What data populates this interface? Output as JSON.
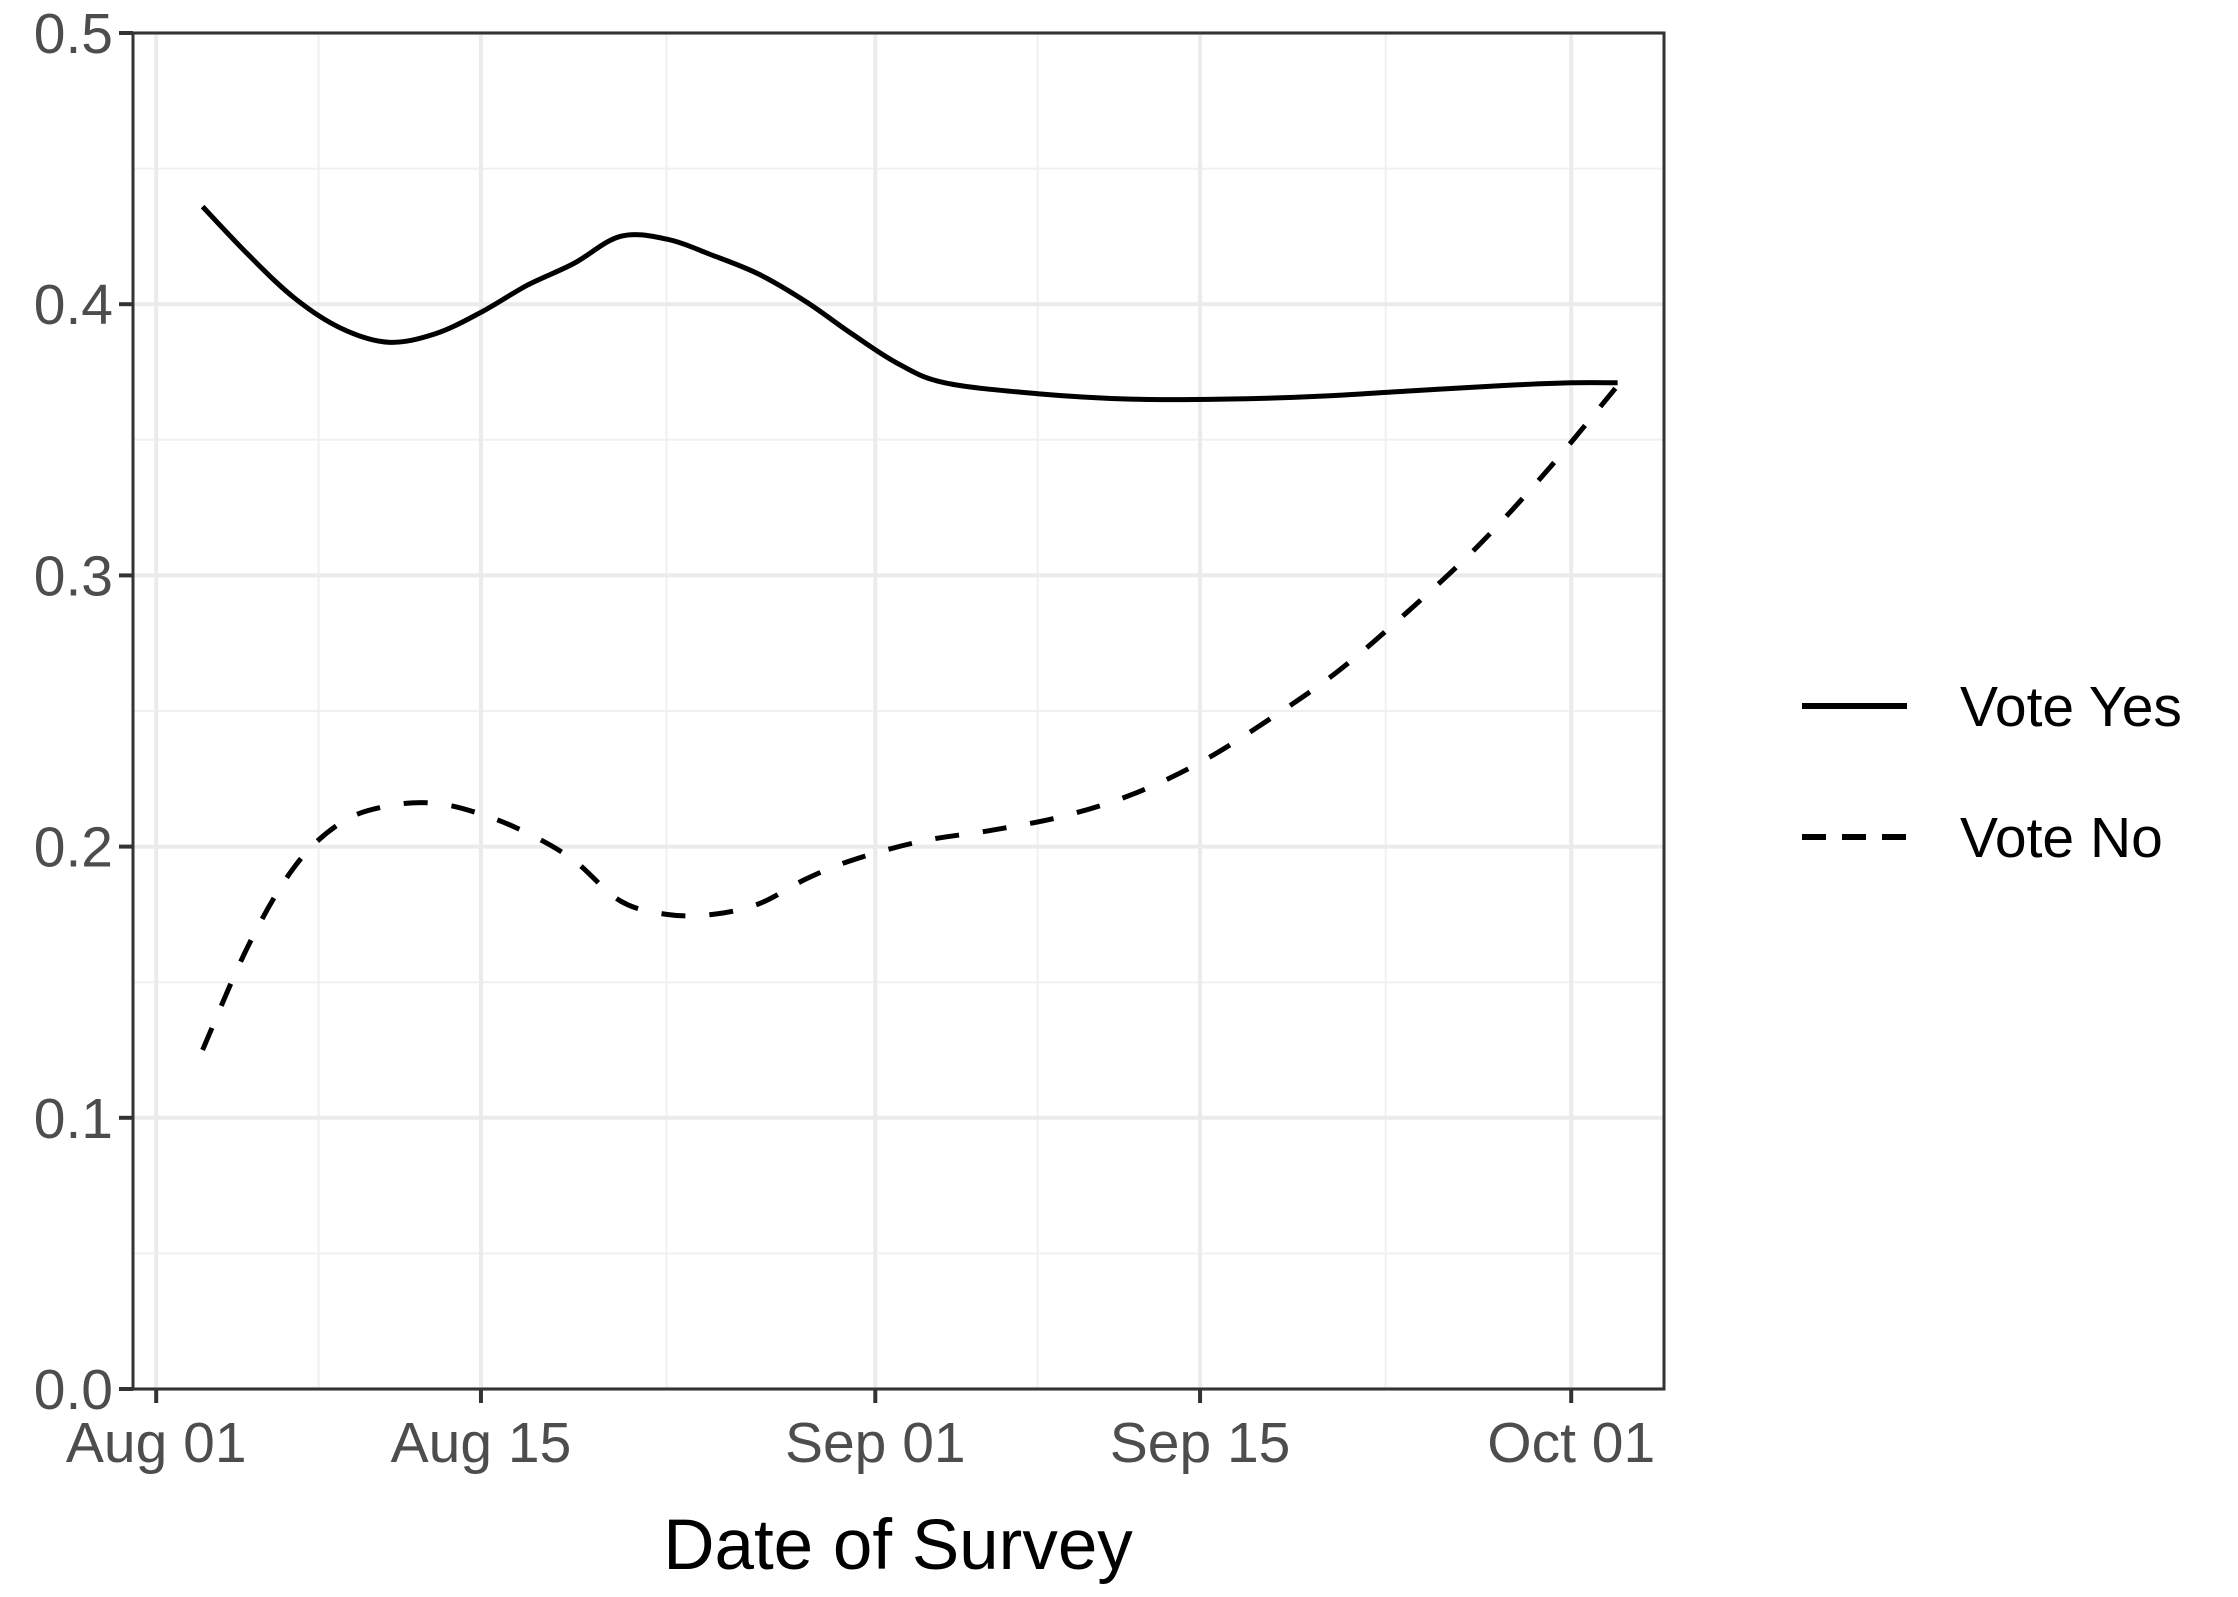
{
  "chart_data": {
    "type": "line",
    "title": "",
    "xlabel": "Date of Survey",
    "ylabel": "",
    "x_major_ticks": [
      "2020-08-01",
      "2020-08-15",
      "2020-09-01",
      "2020-09-15",
      "2020-10-01"
    ],
    "x_tick_labels": [
      "Aug 01",
      "Aug 15",
      "Sep 01",
      "Sep 15",
      "Oct 01"
    ],
    "x_minor_ticks": [
      "2020-08-08",
      "2020-08-23",
      "2020-09-08",
      "2020-09-23"
    ],
    "y_major_ticks": [
      0.0,
      0.1,
      0.2,
      0.3,
      0.4,
      0.5
    ],
    "y_tick_labels": [
      "0.0",
      "0.1",
      "0.2",
      "0.3",
      "0.4",
      "0.5"
    ],
    "y_minor_ticks": [
      0.05,
      0.15,
      0.25,
      0.35,
      0.45
    ],
    "xlim": [
      "2020-07-31",
      "2020-10-05"
    ],
    "ylim": [
      0.0,
      0.5
    ],
    "grid": true,
    "legend_position": "right",
    "series": [
      {
        "name": "Vote Yes",
        "line_style": "solid",
        "color": "#000000",
        "points": [
          [
            "2020-08-03",
            0.436
          ],
          [
            "2020-08-05",
            0.418
          ],
          [
            "2020-08-07",
            0.402
          ],
          [
            "2020-08-09",
            0.391
          ],
          [
            "2020-08-11",
            0.386
          ],
          [
            "2020-08-13",
            0.389
          ],
          [
            "2020-08-15",
            0.397
          ],
          [
            "2020-08-17",
            0.407
          ],
          [
            "2020-08-19",
            0.415
          ],
          [
            "2020-08-21",
            0.425
          ],
          [
            "2020-08-23",
            0.424
          ],
          [
            "2020-08-25",
            0.418
          ],
          [
            "2020-08-27",
            0.411
          ],
          [
            "2020-08-29",
            0.401
          ],
          [
            "2020-08-31",
            0.389
          ],
          [
            "2020-09-02",
            0.378
          ],
          [
            "2020-09-04",
            0.371
          ],
          [
            "2020-09-08",
            0.367
          ],
          [
            "2020-09-12",
            0.365
          ],
          [
            "2020-09-16",
            0.365
          ],
          [
            "2020-09-20",
            0.366
          ],
          [
            "2020-09-24",
            0.368
          ],
          [
            "2020-09-28",
            0.37
          ],
          [
            "2020-10-01",
            0.371
          ],
          [
            "2020-10-03",
            0.371
          ]
        ]
      },
      {
        "name": "Vote No",
        "line_style": "dashed",
        "color": "#000000",
        "points": [
          [
            "2020-08-03",
            0.125
          ],
          [
            "2020-08-05",
            0.164
          ],
          [
            "2020-08-07",
            0.193
          ],
          [
            "2020-08-09",
            0.209
          ],
          [
            "2020-08-11",
            0.215
          ],
          [
            "2020-08-13",
            0.216
          ],
          [
            "2020-08-15",
            0.212
          ],
          [
            "2020-08-17",
            0.205
          ],
          [
            "2020-08-19",
            0.195
          ],
          [
            "2020-08-21",
            0.18
          ],
          [
            "2020-08-23",
            0.175
          ],
          [
            "2020-08-25",
            0.175
          ],
          [
            "2020-08-27",
            0.179
          ],
          [
            "2020-08-29",
            0.188
          ],
          [
            "2020-08-31",
            0.195
          ],
          [
            "2020-09-03",
            0.202
          ],
          [
            "2020-09-06",
            0.206
          ],
          [
            "2020-09-09",
            0.211
          ],
          [
            "2020-09-12",
            0.219
          ],
          [
            "2020-09-15",
            0.231
          ],
          [
            "2020-09-18",
            0.247
          ],
          [
            "2020-09-21",
            0.265
          ],
          [
            "2020-09-24",
            0.287
          ],
          [
            "2020-09-27",
            0.311
          ],
          [
            "2020-09-30",
            0.339
          ],
          [
            "2020-10-03",
            0.37
          ]
        ]
      }
    ]
  }
}
